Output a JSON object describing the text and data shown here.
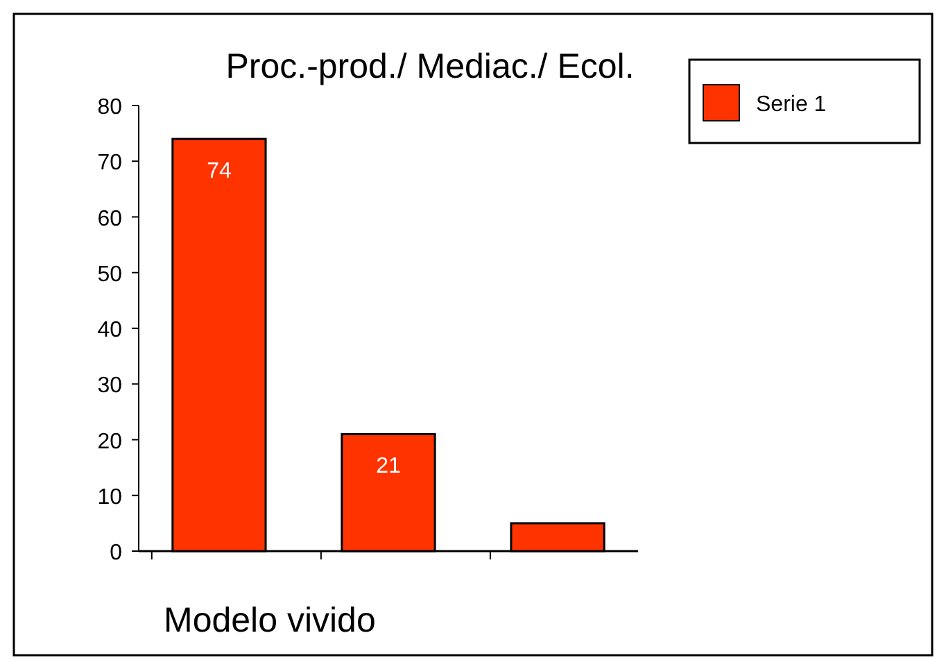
{
  "chart_data": {
    "type": "bar",
    "title": "Proc.-prod./ Mediac./ Ecol.",
    "xlabel": "Modelo vivido",
    "categories": [
      null,
      null,
      null
    ],
    "series": [
      {
        "name": "Serie 1",
        "color": "#ff3300",
        "values": [
          74,
          21,
          5
        ],
        "value_labels": [
          "74",
          "21",
          null
        ]
      }
    ],
    "ylim": [
      0,
      80
    ],
    "yticks": [
      0,
      10,
      20,
      30,
      40,
      50,
      60,
      70,
      80
    ],
    "grid": false,
    "legend": "top right"
  }
}
